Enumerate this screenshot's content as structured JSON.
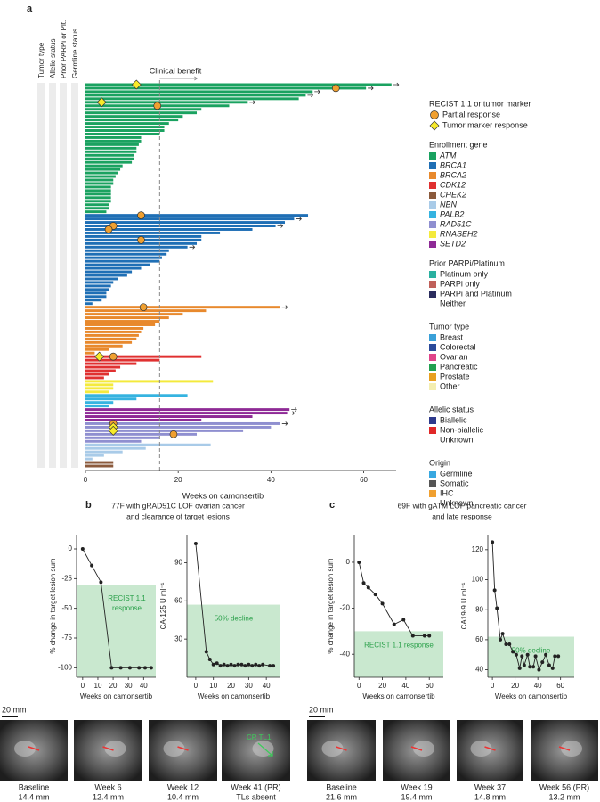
{
  "panel_labels": [
    "a",
    "b",
    "c"
  ],
  "chart_data": [
    {
      "type": "swimmer",
      "column_headers": [
        "Tumor type",
        "Allelic status",
        "Prior PARPi or Plt.",
        "Germline status"
      ],
      "x_label": "Weeks on camonsertib",
      "xlim": [
        0,
        67
      ],
      "xticks": [
        0,
        20,
        40,
        60
      ],
      "reference_line": {
        "value": 16,
        "label": "Clinical benefit"
      },
      "series": [
        {
          "name": "ATM",
          "color": "#1aa260",
          "values": [
            66,
            60.5,
            49,
            47.5,
            46,
            35,
            31,
            25,
            24,
            21,
            20,
            18,
            17,
            17,
            16,
            12,
            12,
            11.5,
            11,
            11,
            10.5,
            10.5,
            10,
            8,
            7.5,
            7,
            6.5,
            6,
            6,
            5.5,
            5.5,
            5.5,
            5.5,
            5.5,
            5,
            5,
            4.5
          ],
          "ongoing": [
            0,
            1,
            2,
            3,
            5
          ]
        },
        {
          "name": "BRCA1",
          "color": "#1f6fb5",
          "values": [
            48,
            45,
            43,
            41,
            36,
            29,
            25,
            25,
            24,
            22,
            18,
            17.5,
            16.5,
            16,
            14,
            12,
            10,
            9,
            7,
            6,
            5.5,
            5,
            4.5,
            4.5,
            3.5,
            1.5
          ],
          "ongoing": [
            1,
            3,
            9
          ]
        },
        {
          "name": "BRCA2",
          "color": "#e8892d",
          "values": [
            42,
            26,
            21,
            18,
            16,
            15,
            12.5,
            12,
            11.5,
            11,
            10,
            8,
            5,
            2
          ],
          "ongoing": [
            0
          ]
        },
        {
          "name": "CDK12",
          "color": "#e03030",
          "values": [
            25,
            16,
            11,
            7.5,
            6.5,
            5,
            4
          ],
          "ongoing": []
        },
        {
          "name": "CHEK2",
          "color": "#8b5a3c",
          "values": [
            6,
            6
          ],
          "ongoing": []
        },
        {
          "name": "NBN",
          "color": "#a9cbe8",
          "values": [
            27,
            13,
            8,
            4,
            1.5
          ],
          "ongoing": []
        },
        {
          "name": "PALB2",
          "color": "#35b3e0",
          "values": [
            22,
            11,
            6,
            5
          ],
          "ongoing": []
        },
        {
          "name": "RAD51C",
          "color": "#8f8fd0",
          "values": [
            42,
            40,
            34,
            24,
            16,
            12
          ],
          "ongoing": [
            0
          ]
        },
        {
          "name": "RNASEH2",
          "color": "#f4ea3c",
          "values": [
            27.5,
            6,
            6,
            5
          ],
          "ongoing": []
        },
        {
          "name": "SETD2",
          "color": "#8e2a96",
          "values": [
            44,
            43.5,
            36,
            25
          ],
          "ongoing": [
            0,
            1
          ]
        }
      ],
      "plot_order": [
        0,
        1,
        2,
        3,
        8,
        6,
        9,
        7,
        5,
        4
      ],
      "markers": [
        {
          "kind": "diamond",
          "series": 0,
          "bar": 0,
          "x": 11
        },
        {
          "kind": "circle",
          "series": 0,
          "bar": 1,
          "x": 54
        },
        {
          "kind": "diamond",
          "series": 0,
          "bar": 5,
          "x": 3.5
        },
        {
          "kind": "circle",
          "series": 0,
          "bar": 6,
          "x": 15.5
        },
        {
          "kind": "circle",
          "series": 1,
          "bar": 0,
          "x": 12
        },
        {
          "kind": "circle",
          "series": 1,
          "bar": 3,
          "x": 6
        },
        {
          "kind": "circle",
          "series": 1,
          "bar": 4,
          "x": 5
        },
        {
          "kind": "circle",
          "series": 1,
          "bar": 7,
          "x": 12
        },
        {
          "kind": "circle",
          "series": 2,
          "bar": 0,
          "x": 12.5
        },
        {
          "kind": "diamond",
          "series": 3,
          "bar": 0,
          "x": 3
        },
        {
          "kind": "circle",
          "series": 3,
          "bar": 0,
          "x": 6
        },
        {
          "kind": "circle",
          "series": 7,
          "bar": 0,
          "x": 6
        },
        {
          "kind": "diamond",
          "series": 7,
          "bar": 1,
          "x": 6
        },
        {
          "kind": "diamond",
          "series": 7,
          "bar": 2,
          "x": 6
        },
        {
          "kind": "circle",
          "series": 7,
          "bar": 3,
          "x": 19
        }
      ],
      "legend": {
        "marker_title": "RECIST 1.1 or tumor marker",
        "circle": "Partial response",
        "diamond": "Tumor marker response",
        "gene_title": "Enrollment gene",
        "groups": [
          {
            "title": "Prior PARPi/Platinum",
            "items": [
              {
                "name": "Platinum only",
                "color": "#2ab0a0"
              },
              {
                "name": "PARPi only",
                "color": "#c0605a"
              },
              {
                "name": "PARPi and Platinum",
                "color": "#2b2d5e"
              },
              {
                "name": "Neither",
                "color": null
              }
            ]
          },
          {
            "title": "Tumor type",
            "items": [
              {
                "name": "Breast",
                "color": "#3aa0d8"
              },
              {
                "name": "Colorectal",
                "color": "#2b4a9a"
              },
              {
                "name": "Ovarian",
                "color": "#e0448a"
              },
              {
                "name": "Pancreatic",
                "color": "#22a050"
              },
              {
                "name": "Prostate",
                "color": "#e8a020"
              },
              {
                "name": "Other",
                "color": "#f4eeb0"
              }
            ]
          },
          {
            "title": "Allelic status",
            "items": [
              {
                "name": "Biallelic",
                "color": "#2e3a8c"
              },
              {
                "name": "Non-biallelic",
                "color": "#e02828"
              },
              {
                "name": "Unknown",
                "color": null
              }
            ]
          },
          {
            "title": "Origin",
            "items": [
              {
                "name": "Germline",
                "color": "#38a8e0"
              },
              {
                "name": "Somatic",
                "color": "#555555"
              },
              {
                "name": "IHC",
                "color": "#f0a030"
              },
              {
                "name": "Unknown",
                "color": null
              }
            ]
          }
        ]
      }
    },
    {
      "type": "line",
      "title": [
        "77F with gRAD51C LOF ovarian cancer",
        "and clearance of target lesions"
      ],
      "y_label": "% change in target lesion sum",
      "x_label": "Weeks on camonsertib",
      "x": [
        0,
        6,
        12,
        19,
        25,
        31,
        37,
        41,
        45
      ],
      "values": [
        0,
        -14,
        -28,
        -100,
        -100,
        -100,
        -100,
        -100,
        -100
      ],
      "xlim": [
        -4,
        48
      ],
      "xticks": [
        0,
        10,
        20,
        30,
        40
      ],
      "ylim": [
        -108,
        12
      ],
      "yticks": [
        0,
        -25,
        -50,
        -75,
        -100
      ],
      "shade_below": -30,
      "shade_label": [
        "RECIST 1.1",
        "response"
      ],
      "shade_color": "#c9e8cf",
      "color": "#222222"
    },
    {
      "type": "line",
      "title": [],
      "y_label": "CA-125 U ml⁻¹",
      "x_label": "Weeks on camonsertib",
      "x": [
        0,
        6,
        8,
        10,
        12,
        14,
        16,
        18,
        20,
        22,
        24,
        26,
        28,
        30,
        32,
        34,
        36,
        38,
        42,
        44
      ],
      "values": [
        105,
        20,
        14,
        10,
        11,
        9,
        10,
        9,
        10,
        9,
        10,
        10,
        9,
        10,
        9,
        10,
        9,
        10,
        9,
        9
      ],
      "xlim": [
        -5,
        48
      ],
      "xticks": [
        0,
        10,
        20,
        30,
        40
      ],
      "ylim": [
        0,
        112
      ],
      "yticks": [
        30,
        60,
        90
      ],
      "shade_below": 57,
      "shade_label": [
        "50% decline"
      ],
      "shade_color": "#c9e8cf",
      "color": "#222222"
    },
    {
      "type": "line",
      "title": [
        "69F with gATM LOF pancreatic cancer",
        "and late response"
      ],
      "y_label": "% change in target lesion sum",
      "x_label": "Weeks on camonsertib",
      "x": [
        0,
        4,
        8,
        14,
        20,
        30,
        38,
        46,
        56,
        60
      ],
      "values": [
        0,
        -9,
        -11,
        -14,
        -18,
        -27,
        -25,
        -32,
        -32,
        -32
      ],
      "xlim": [
        -4,
        72
      ],
      "xticks": [
        0,
        20,
        40,
        60
      ],
      "ylim": [
        -50,
        12
      ],
      "yticks": [
        0,
        -20,
        -40
      ],
      "shade_below": -30,
      "shade_label": [
        "RECIST 1.1 response"
      ],
      "shade_color": "#c9e8cf",
      "color": "#222222"
    },
    {
      "type": "line",
      "title": [],
      "y_label": "CA19-9 U ml⁻¹",
      "x_label": "Weeks on camonsertib",
      "x": [
        0,
        2,
        4,
        7,
        9,
        12,
        15,
        18,
        21,
        24,
        26,
        28,
        31,
        33,
        36,
        38,
        41,
        44,
        47,
        50,
        53,
        55,
        58
      ],
      "values": [
        125,
        93,
        81,
        60,
        64,
        57,
        57,
        52,
        50,
        41,
        49,
        43,
        50,
        42,
        42,
        49,
        40,
        45,
        50,
        43,
        41,
        49,
        49
      ],
      "xlim": [
        -4,
        72
      ],
      "xticks": [
        0,
        20,
        40,
        60
      ],
      "ylim": [
        35,
        130
      ],
      "yticks": [
        40,
        60,
        80,
        100,
        120
      ],
      "shade_below": 62,
      "shade_label": [
        "50% decline"
      ],
      "shade_color": "#c9e8cf",
      "color": "#222222"
    }
  ],
  "images": {
    "b": {
      "scale_bar": "20 mm",
      "annotation": "CR TL1",
      "captions": [
        [
          "Baseline",
          "14.4 mm"
        ],
        [
          "Week 6",
          "12.4 mm"
        ],
        [
          "Week 12",
          "10.4 mm"
        ],
        [
          "Week 41 (PR)",
          "TLs absent"
        ]
      ]
    },
    "c": {
      "scale_bar": "20 mm",
      "captions": [
        [
          "Baseline",
          "21.6 mm"
        ],
        [
          "Week 19",
          "19.4 mm"
        ],
        [
          "Week 37",
          "14.8 mm"
        ],
        [
          "Week 56 (PR)",
          "13.2 mm"
        ]
      ]
    }
  }
}
